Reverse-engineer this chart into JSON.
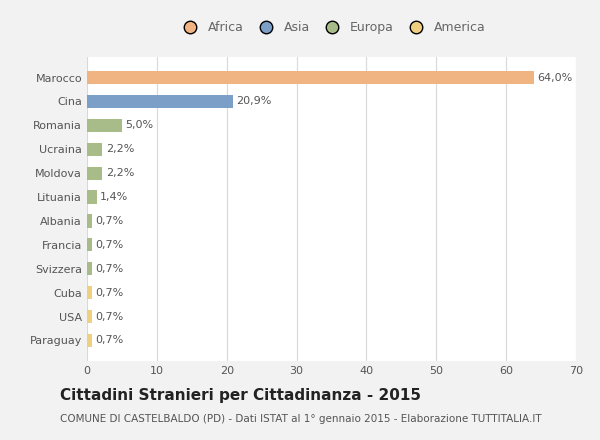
{
  "countries": [
    "Marocco",
    "Cina",
    "Romania",
    "Ucraina",
    "Moldova",
    "Lituania",
    "Albania",
    "Francia",
    "Svizzera",
    "Cuba",
    "USA",
    "Paraguay"
  ],
  "values": [
    64.0,
    20.9,
    5.0,
    2.2,
    2.2,
    1.4,
    0.7,
    0.7,
    0.7,
    0.7,
    0.7,
    0.7
  ],
  "labels": [
    "64,0%",
    "20,9%",
    "5,0%",
    "2,2%",
    "2,2%",
    "1,4%",
    "0,7%",
    "0,7%",
    "0,7%",
    "0,7%",
    "0,7%",
    "0,7%"
  ],
  "colors": [
    "#f0b482",
    "#7b9fc7",
    "#a8bc8a",
    "#a8bc8a",
    "#a8bc8a",
    "#a8bc8a",
    "#a8bc8a",
    "#a8bc8a",
    "#a8bc8a",
    "#f0d080",
    "#f0d080",
    "#f0d080"
  ],
  "legend_labels": [
    "Africa",
    "Asia",
    "Europa",
    "America"
  ],
  "legend_colors": [
    "#f0b482",
    "#7b9fc7",
    "#a8bc8a",
    "#f0d080"
  ],
  "xlim": [
    0,
    70
  ],
  "xticks": [
    0,
    10,
    20,
    30,
    40,
    50,
    60,
    70
  ],
  "title": "Cittadini Stranieri per Cittadinanza - 2015",
  "subtitle": "COMUNE DI CASTELBALDO (PD) - Dati ISTAT al 1° gennaio 2015 - Elaborazione TUTTITALIA.IT",
  "background_color": "#f2f2f2",
  "bar_background": "#ffffff",
  "grid_color": "#d8d8d8",
  "title_fontsize": 11,
  "subtitle_fontsize": 7.5,
  "label_fontsize": 8,
  "tick_fontsize": 8,
  "legend_fontsize": 9
}
